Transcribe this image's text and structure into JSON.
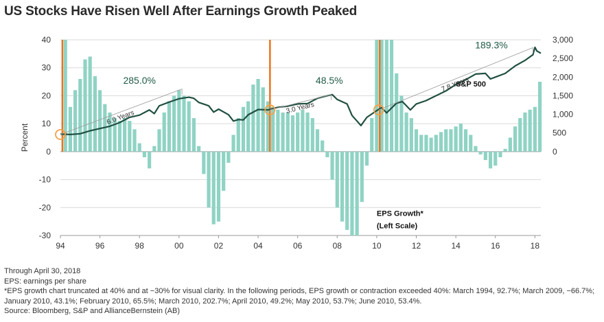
{
  "title": "US Stocks Have Risen Well After Earnings Growth Peaked",
  "colors": {
    "bars": "#8fd3c4",
    "line": "#1f4f41",
    "markers": "#e8741e",
    "circles": "#f2a04a",
    "trend": "#999999",
    "grid": "#d9d9d9"
  },
  "chart_data": {
    "type": "bar+line",
    "ylabel": "Percent",
    "left_axis": {
      "min": -30,
      "max": 40,
      "ticks": [
        "40",
        "30",
        "20",
        "10",
        "0",
        "-10",
        "-20",
        "-30"
      ]
    },
    "right_axis": {
      "min": 0,
      "max": 3000,
      "ticks": [
        "3,000",
        "2,500",
        "2,000",
        "1,500",
        "1,000",
        "500",
        "0"
      ]
    },
    "x_axis": {
      "min": 1994,
      "max": 2018.3,
      "ticks": [
        "94",
        "96",
        "98",
        "00",
        "02",
        "04",
        "06",
        "08",
        "10",
        "12",
        "14",
        "16",
        "18"
      ]
    },
    "series": [
      {
        "name": "EPS Growth*",
        "label_lines": [
          "EPS Growth*",
          "(Left Scale)"
        ],
        "axis": "left",
        "type": "bar",
        "x": [
          1994.25,
          1994.5,
          1994.75,
          1995.0,
          1995.25,
          1995.5,
          1995.75,
          1996.0,
          1996.25,
          1996.5,
          1996.75,
          1997.0,
          1997.25,
          1997.5,
          1997.75,
          1998.0,
          1998.25,
          1998.5,
          1998.75,
          1999.0,
          1999.25,
          1999.5,
          1999.75,
          2000.0,
          2000.25,
          2000.5,
          2000.75,
          2001.0,
          2001.25,
          2001.5,
          2001.75,
          2002.0,
          2002.25,
          2002.5,
          2002.75,
          2003.0,
          2003.25,
          2003.5,
          2003.75,
          2004.0,
          2004.25,
          2004.5,
          2004.75,
          2005.0,
          2005.25,
          2005.5,
          2005.75,
          2006.0,
          2006.25,
          2006.5,
          2006.75,
          2007.0,
          2007.25,
          2007.5,
          2007.75,
          2008.0,
          2008.25,
          2008.5,
          2008.75,
          2009.0,
          2009.25,
          2009.5,
          2009.75,
          2010.0,
          2010.25,
          2010.5,
          2010.75,
          2011.0,
          2011.25,
          2011.5,
          2011.75,
          2012.0,
          2012.25,
          2012.5,
          2012.75,
          2013.0,
          2013.25,
          2013.5,
          2013.75,
          2014.0,
          2014.25,
          2014.5,
          2014.75,
          2015.0,
          2015.25,
          2015.5,
          2015.75,
          2016.0,
          2016.25,
          2016.5,
          2016.75,
          2017.0,
          2017.25,
          2017.5,
          2017.75,
          2018.0,
          2018.25
        ],
        "values": [
          40,
          16,
          22,
          26,
          33,
          34,
          27,
          22,
          17,
          14,
          12,
          11,
          12,
          11,
          8,
          3,
          -2,
          -6,
          2,
          8,
          14,
          18,
          20,
          22,
          20,
          18,
          12,
          2,
          -8,
          -20,
          -26,
          -25,
          -14,
          -4,
          6,
          12,
          16,
          18,
          24,
          26,
          23,
          18,
          16,
          15,
          14,
          14,
          13,
          14,
          15,
          14,
          12,
          8,
          4,
          -2,
          -10,
          -20,
          -25,
          -28,
          -30,
          -30,
          -18,
          -5,
          12,
          40,
          40,
          40,
          40,
          28,
          20,
          14,
          12,
          8,
          6,
          6,
          5,
          6,
          7,
          8,
          8,
          9,
          10,
          8,
          6,
          2,
          -1,
          -3,
          -6,
          -5,
          -2,
          1,
          5,
          9,
          12,
          14,
          15,
          16,
          25
        ]
      },
      {
        "name": "S&P 500",
        "axis": "right",
        "type": "line",
        "x": [
          1994.0,
          1994.5,
          1995.0,
          1995.5,
          1996.0,
          1996.5,
          1997.0,
          1997.5,
          1998.0,
          1998.5,
          1998.75,
          1999.0,
          1999.5,
          2000.0,
          2000.5,
          2000.75,
          2001.0,
          2001.5,
          2001.75,
          2002.0,
          2002.5,
          2002.75,
          2003.0,
          2003.25,
          2003.5,
          2004.0,
          2004.5,
          2005.0,
          2005.5,
          2006.0,
          2006.5,
          2007.0,
          2007.5,
          2007.75,
          2008.0,
          2008.5,
          2008.75,
          2009.0,
          2009.2,
          2009.5,
          2010.0,
          2010.25,
          2010.5,
          2011.0,
          2011.3,
          2011.7,
          2012.0,
          2012.5,
          2013.0,
          2013.5,
          2014.0,
          2014.5,
          2015.0,
          2015.5,
          2015.75,
          2016.0,
          2016.5,
          2017.0,
          2017.5,
          2017.9,
          2018.0,
          2018.1,
          2018.3
        ],
        "values": [
          470,
          460,
          480,
          560,
          620,
          680,
          780,
          920,
          980,
          1120,
          1020,
          1230,
          1330,
          1420,
          1460,
          1430,
          1320,
          1230,
          1060,
          1140,
          990,
          820,
          860,
          850,
          990,
          1130,
          1120,
          1190,
          1220,
          1280,
          1290,
          1430,
          1500,
          1530,
          1400,
          1280,
          970,
          820,
          700,
          920,
          1100,
          1180,
          1040,
          1300,
          1340,
          1120,
          1280,
          1370,
          1500,
          1630,
          1800,
          1930,
          2080,
          2100,
          1950,
          2000,
          2100,
          2300,
          2450,
          2600,
          2800,
          2700,
          2640
        ]
      }
    ],
    "annotations": [
      {
        "text": "285.0%",
        "kind": "gain",
        "x": 1998.0,
        "y": 1820
      },
      {
        "text": "48.5%",
        "kind": "gain",
        "x": 2007.6,
        "y": 1820
      },
      {
        "text": "189.3%",
        "kind": "gain",
        "x": 2015.8,
        "y": 2770
      },
      {
        "text": "6.0 Years",
        "kind": "period",
        "from_x": 1994.0,
        "from_y": 460,
        "to_x": 2000.15,
        "to_y": 1680
      },
      {
        "text": "3.0 Years",
        "kind": "period",
        "from_x": 2004.6,
        "from_y": 1120,
        "to_x": 2007.7,
        "to_y": 1530
      },
      {
        "text": "7.8 Years",
        "kind": "period",
        "from_x": 2010.1,
        "from_y": 1120,
        "to_x": 2017.9,
        "to_y": 2790
      }
    ],
    "line_label": "S&P 500",
    "earnings_peaks": [
      1994.1,
      2004.6,
      2010.15
    ]
  },
  "notes": [
    "Through April 30, 2018",
    "EPS: earnings per share",
    "*EPS growth chart truncated at 40% and at −30% for visual clarity. In the following periods, EPS growth or contraction exceeded 40%: March 1994, 92.7%; March 2009, −66.7%; January 2010, 43.1%; February 2010, 65.5%; March 2010, 202.7%; April 2010, 49.2%; May 2010, 53.7%; June 2010, 53.4%.",
    "Source: Bloomberg, S&P and AllianceBernstein (AB)"
  ]
}
